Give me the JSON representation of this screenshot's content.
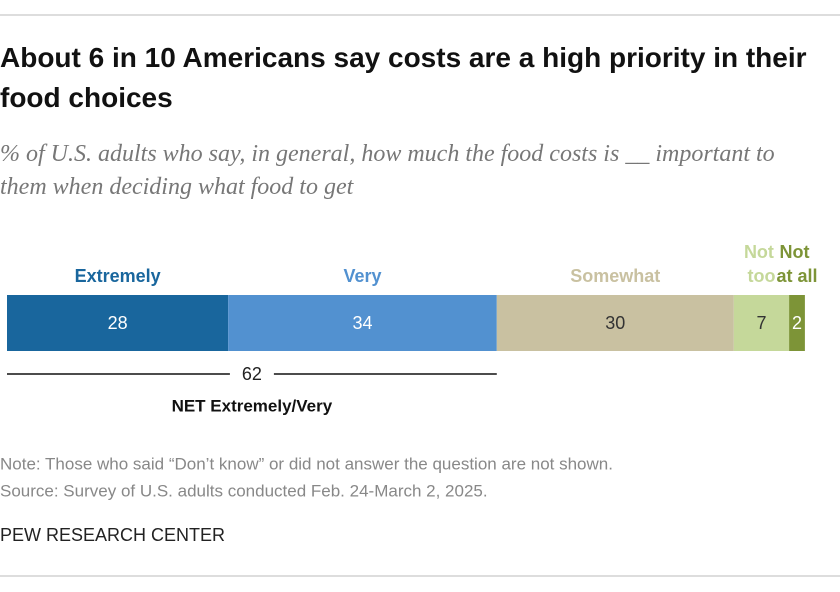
{
  "chart_data": {
    "type": "stacked-bar",
    "title": "About 6 in 10 Americans say costs are a high priority in their food choices",
    "subtitle": "% of U.S. adults who say, in general, how much the food costs is __ important to them when deciding what food to get",
    "series": [
      {
        "name": "Extremely",
        "color": "#19669d",
        "values": [
          28
        ]
      },
      {
        "name": "Very",
        "color": "#5291d0",
        "values": [
          34
        ]
      },
      {
        "name": "Somewhat",
        "color": "#c9c1a1",
        "values": [
          30
        ]
      },
      {
        "name": "Not too",
        "color": "#c5d89a",
        "values": [
          7
        ]
      },
      {
        "name": "Not at all",
        "color": "#7d9437",
        "values": [
          2
        ]
      }
    ],
    "net": {
      "label": "NET Extremely/Very",
      "value": 62
    },
    "note": "Note: Those who said “Don’t know” or did not answer the question are not shown.",
    "source": "Source: Survey of U.S. adults conducted Feb. 24-March 2, 2025.",
    "credit": "PEW RESEARCH CENTER"
  }
}
